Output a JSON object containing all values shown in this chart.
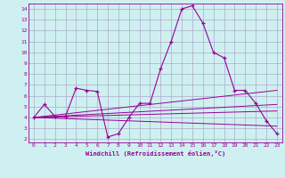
{
  "title": "",
  "xlabel": "Windchill (Refroidissement éolien,°C)",
  "bg_color": "#cff0f0",
  "grid_color": "#aaaacc",
  "line_color": "#990099",
  "xlim": [
    -0.5,
    23.5
  ],
  "ylim": [
    1.7,
    14.5
  ],
  "yticks": [
    2,
    3,
    4,
    5,
    6,
    7,
    8,
    9,
    10,
    11,
    12,
    13,
    14
  ],
  "xticks": [
    0,
    1,
    2,
    3,
    4,
    5,
    6,
    7,
    8,
    9,
    10,
    11,
    12,
    13,
    14,
    15,
    16,
    17,
    18,
    19,
    20,
    21,
    22,
    23
  ],
  "main_line": {
    "x": [
      0,
      1,
      2,
      3,
      4,
      5,
      6,
      7,
      8,
      9,
      10,
      11,
      12,
      13,
      14,
      15,
      16,
      17,
      18,
      19,
      20,
      21,
      22,
      23
    ],
    "y": [
      4.0,
      5.2,
      4.1,
      4.1,
      6.7,
      6.5,
      6.4,
      2.2,
      2.5,
      4.0,
      5.3,
      5.3,
      8.5,
      11.0,
      14.0,
      14.3,
      12.7,
      10.0,
      9.5,
      6.5,
      6.5,
      5.3,
      3.7,
      2.5
    ]
  },
  "trend_lines": [
    {
      "x": [
        0,
        23
      ],
      "y": [
        4.0,
        6.5
      ]
    },
    {
      "x": [
        0,
        23
      ],
      "y": [
        4.0,
        5.2
      ]
    },
    {
      "x": [
        0,
        23
      ],
      "y": [
        4.0,
        4.6
      ]
    },
    {
      "x": [
        0,
        23
      ],
      "y": [
        4.0,
        3.2
      ]
    }
  ]
}
